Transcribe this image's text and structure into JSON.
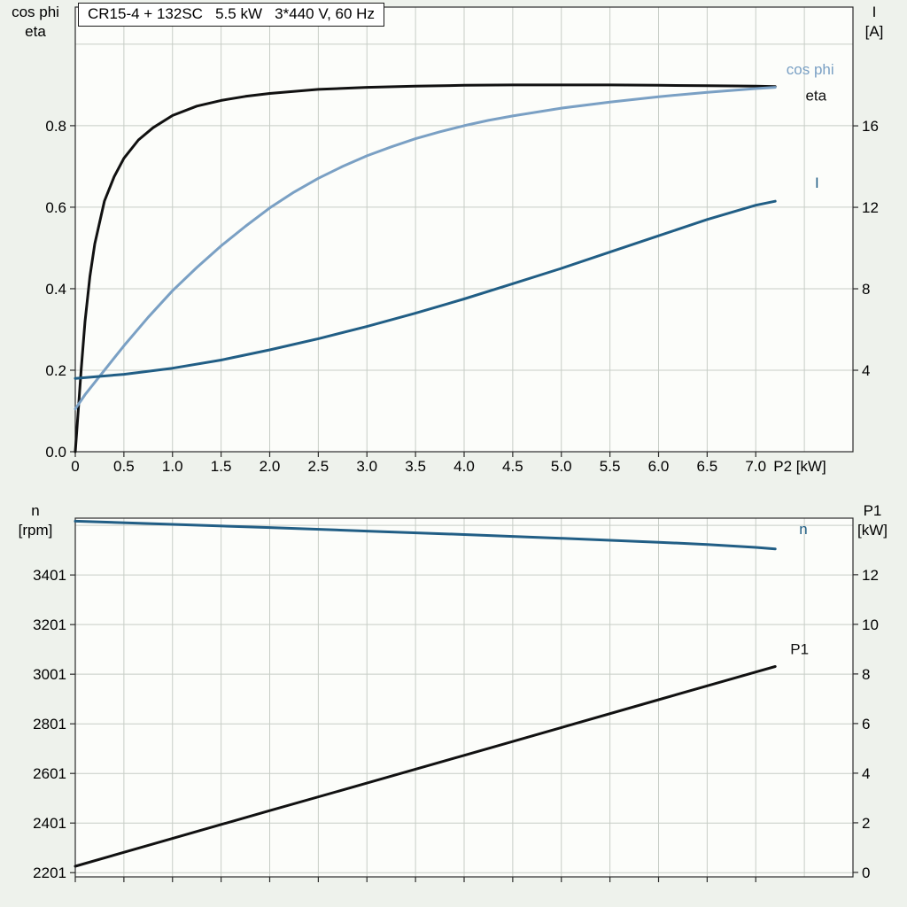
{
  "page": {
    "background": "#eef2ec",
    "plot_background": "#fcfdfa",
    "grid_color": "#c7cdc6",
    "frame_color": "#2b2b2b",
    "text_color": "#000000"
  },
  "title_box": {
    "text": "CR15-4 + 132SC   5.5 kW   3*440 V, 60 Hz"
  },
  "corner_labels": {
    "top_left": [
      "cos phi",
      "eta"
    ],
    "top_right": [
      "I",
      "[A]"
    ],
    "bottom_left": [
      "n",
      "[rpm]"
    ],
    "bottom_right": [
      "P1",
      "[kW]"
    ]
  },
  "chart_data": [
    {
      "type": "line",
      "title": "CR15-4 + 132SC   5.5 kW   3*440 V, 60 Hz",
      "x_axis": {
        "label": "P2 [kW]",
        "min": 0,
        "max": 8,
        "tick_values": [
          0,
          0.5,
          1,
          1.5,
          2,
          2.5,
          3,
          3.5,
          4,
          4.5,
          5,
          5.5,
          6,
          6.5,
          7
        ],
        "tick_labels": [
          "0",
          "0.5",
          "1.0",
          "1.5",
          "2.0",
          "2.5",
          "3.0",
          "3.5",
          "4.0",
          "4.5",
          "5.0",
          "5.5",
          "6.0",
          "6.5",
          "7.0"
        ],
        "grid_values": [
          0.5,
          1,
          1.5,
          2,
          2.5,
          3,
          3.5,
          4,
          4.5,
          5,
          5.5,
          6,
          6.5,
          7,
          7.5
        ]
      },
      "left_axis": {
        "label": "cos phi / eta",
        "min": 0,
        "max": 1.091,
        "tick_values": [
          0,
          0.2,
          0.4,
          0.6,
          0.8
        ],
        "tick_labels": [
          "0.0",
          "0.2",
          "0.4",
          "0.6",
          "0.8"
        ],
        "grid_values": [
          0.2,
          0.4,
          0.6,
          0.8,
          1.0
        ]
      },
      "right_axis": {
        "label": "I [A]",
        "min": 0,
        "max": 21.83,
        "tick_values": [
          4,
          8,
          12,
          16
        ],
        "tick_labels": [
          "4",
          "8",
          "12",
          "16"
        ]
      },
      "series": [
        {
          "name": "eta",
          "axis": "left",
          "color": "#111111",
          "label": "eta",
          "label_at": [
            7.62,
            0.862
          ],
          "x": [
            0,
            0.03,
            0.06,
            0.1,
            0.15,
            0.2,
            0.3,
            0.4,
            0.5,
            0.65,
            0.8,
            1.0,
            1.25,
            1.5,
            1.75,
            2.0,
            2.5,
            3.0,
            3.5,
            4.0,
            4.5,
            5.0,
            5.5,
            6.0,
            6.5,
            7.0,
            7.2
          ],
          "y": [
            0,
            0.1,
            0.2,
            0.32,
            0.43,
            0.51,
            0.615,
            0.675,
            0.72,
            0.765,
            0.795,
            0.825,
            0.848,
            0.862,
            0.872,
            0.879,
            0.889,
            0.894,
            0.897,
            0.899,
            0.9,
            0.9,
            0.9,
            0.899,
            0.898,
            0.897,
            0.896
          ]
        },
        {
          "name": "cos phi",
          "axis": "left",
          "color": "#7aa0c4",
          "label": "cos phi",
          "label_at": [
            7.56,
            0.926
          ],
          "x": [
            0,
            0.1,
            0.25,
            0.5,
            0.75,
            1.0,
            1.25,
            1.5,
            1.75,
            2.0,
            2.25,
            2.5,
            2.75,
            3.0,
            3.25,
            3.5,
            3.75,
            4.0,
            4.25,
            4.5,
            5.0,
            5.5,
            6.0,
            6.5,
            7.0,
            7.2
          ],
          "y": [
            0.105,
            0.14,
            0.185,
            0.26,
            0.33,
            0.395,
            0.452,
            0.505,
            0.553,
            0.598,
            0.637,
            0.671,
            0.7,
            0.726,
            0.748,
            0.768,
            0.785,
            0.8,
            0.813,
            0.824,
            0.843,
            0.858,
            0.871,
            0.882,
            0.891,
            0.894
          ]
        },
        {
          "name": "I",
          "axis": "right",
          "color": "#215e85",
          "label": "I",
          "label_at": [
            7.63,
            12.95
          ],
          "x": [
            0,
            0.5,
            1.0,
            1.5,
            2.0,
            2.5,
            3.0,
            3.5,
            4.0,
            4.5,
            5.0,
            5.5,
            6.0,
            6.5,
            7.0,
            7.2
          ],
          "y": [
            3.6,
            3.8,
            4.1,
            4.5,
            5.0,
            5.55,
            6.15,
            6.8,
            7.5,
            8.25,
            9.0,
            9.8,
            10.6,
            11.4,
            12.1,
            12.3
          ]
        }
      ]
    },
    {
      "type": "line",
      "title": "",
      "x_axis": {
        "label": "",
        "min": 0,
        "max": 8,
        "tick_values": [
          0,
          0.5,
          1,
          1.5,
          2,
          2.5,
          3,
          3.5,
          4,
          4.5,
          5,
          5.5,
          6,
          6.5,
          7
        ],
        "tick_labels": [],
        "grid_values": [
          0.5,
          1,
          1.5,
          2,
          2.5,
          3,
          3.5,
          4,
          4.5,
          5,
          5.5,
          6,
          6.5,
          7,
          7.5
        ]
      },
      "left_axis": {
        "label": "n [rpm]",
        "min": 2184,
        "max": 3630,
        "tick_values": [
          2201,
          2401,
          2601,
          2801,
          3001,
          3201,
          3401
        ],
        "tick_labels": [
          "2201",
          "2401",
          "2601",
          "2801",
          "3001",
          "3201",
          "3401"
        ],
        "grid_values": [
          2201,
          2401,
          2601,
          2801,
          3001,
          3201,
          3401,
          3601
        ]
      },
      "right_axis": {
        "label": "P1 [kW]",
        "min": -0.18,
        "max": 14.28,
        "tick_values": [
          0,
          2,
          4,
          6,
          8,
          10,
          12
        ],
        "tick_labels": [
          "0",
          "2",
          "4",
          "6",
          "8",
          "10",
          "12"
        ]
      },
      "series": [
        {
          "name": "n",
          "axis": "left",
          "color": "#215e85",
          "label": "n",
          "label_at": [
            7.49,
            3566
          ],
          "x": [
            0,
            1,
            2,
            3,
            4,
            5,
            6,
            6.5,
            7,
            7.2
          ],
          "y": [
            3618,
            3605,
            3592,
            3578,
            3564,
            3549,
            3533,
            3524,
            3512,
            3506
          ]
        },
        {
          "name": "P1",
          "axis": "right",
          "color": "#111111",
          "label": "P1",
          "label_at": [
            7.45,
            8.8
          ],
          "x": [
            0,
            1,
            2,
            3,
            4,
            5,
            6,
            7,
            7.2
          ],
          "y": [
            0.25,
            1.37,
            2.49,
            3.6,
            4.72,
            5.84,
            6.96,
            8.08,
            8.3
          ]
        }
      ]
    }
  ]
}
